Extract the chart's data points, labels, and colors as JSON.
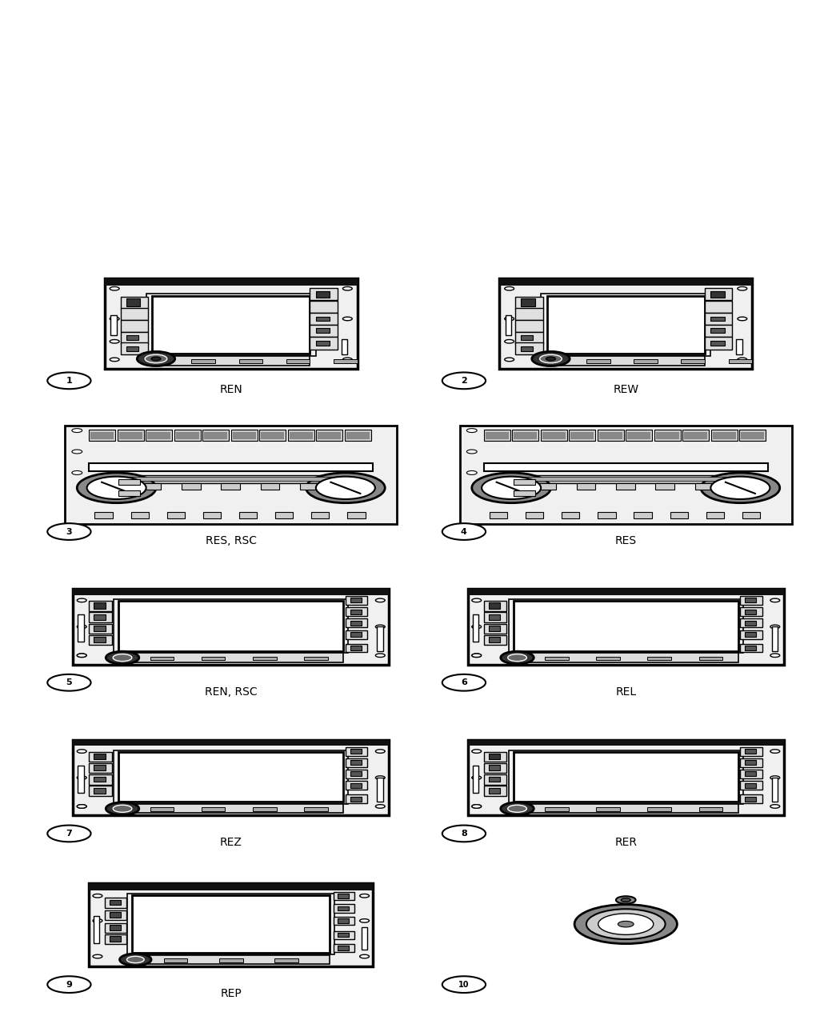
{
  "title": "",
  "grid_rows": 5,
  "grid_cols": 2,
  "items": [
    {
      "num": 1,
      "label": "REN",
      "type": "nav_radio"
    },
    {
      "num": 2,
      "label": "REW",
      "type": "nav_radio"
    },
    {
      "num": 3,
      "label": "RES, RSC",
      "type": "cd_radio"
    },
    {
      "num": 4,
      "label": "RES",
      "type": "cd_radio"
    },
    {
      "num": 5,
      "label": "REN, RSC",
      "type": "nav_radio2"
    },
    {
      "num": 6,
      "label": "REL",
      "type": "nav_radio2"
    },
    {
      "num": 7,
      "label": "REZ",
      "type": "nav_radio2"
    },
    {
      "num": 8,
      "label": "RER",
      "type": "nav_radio2"
    },
    {
      "num": 9,
      "label": "REP",
      "type": "nav_radio3"
    },
    {
      "num": 10,
      "label": "",
      "type": "knob"
    }
  ],
  "bg_color": "#ffffff",
  "line_color": "#000000",
  "label_fontsize": 10
}
